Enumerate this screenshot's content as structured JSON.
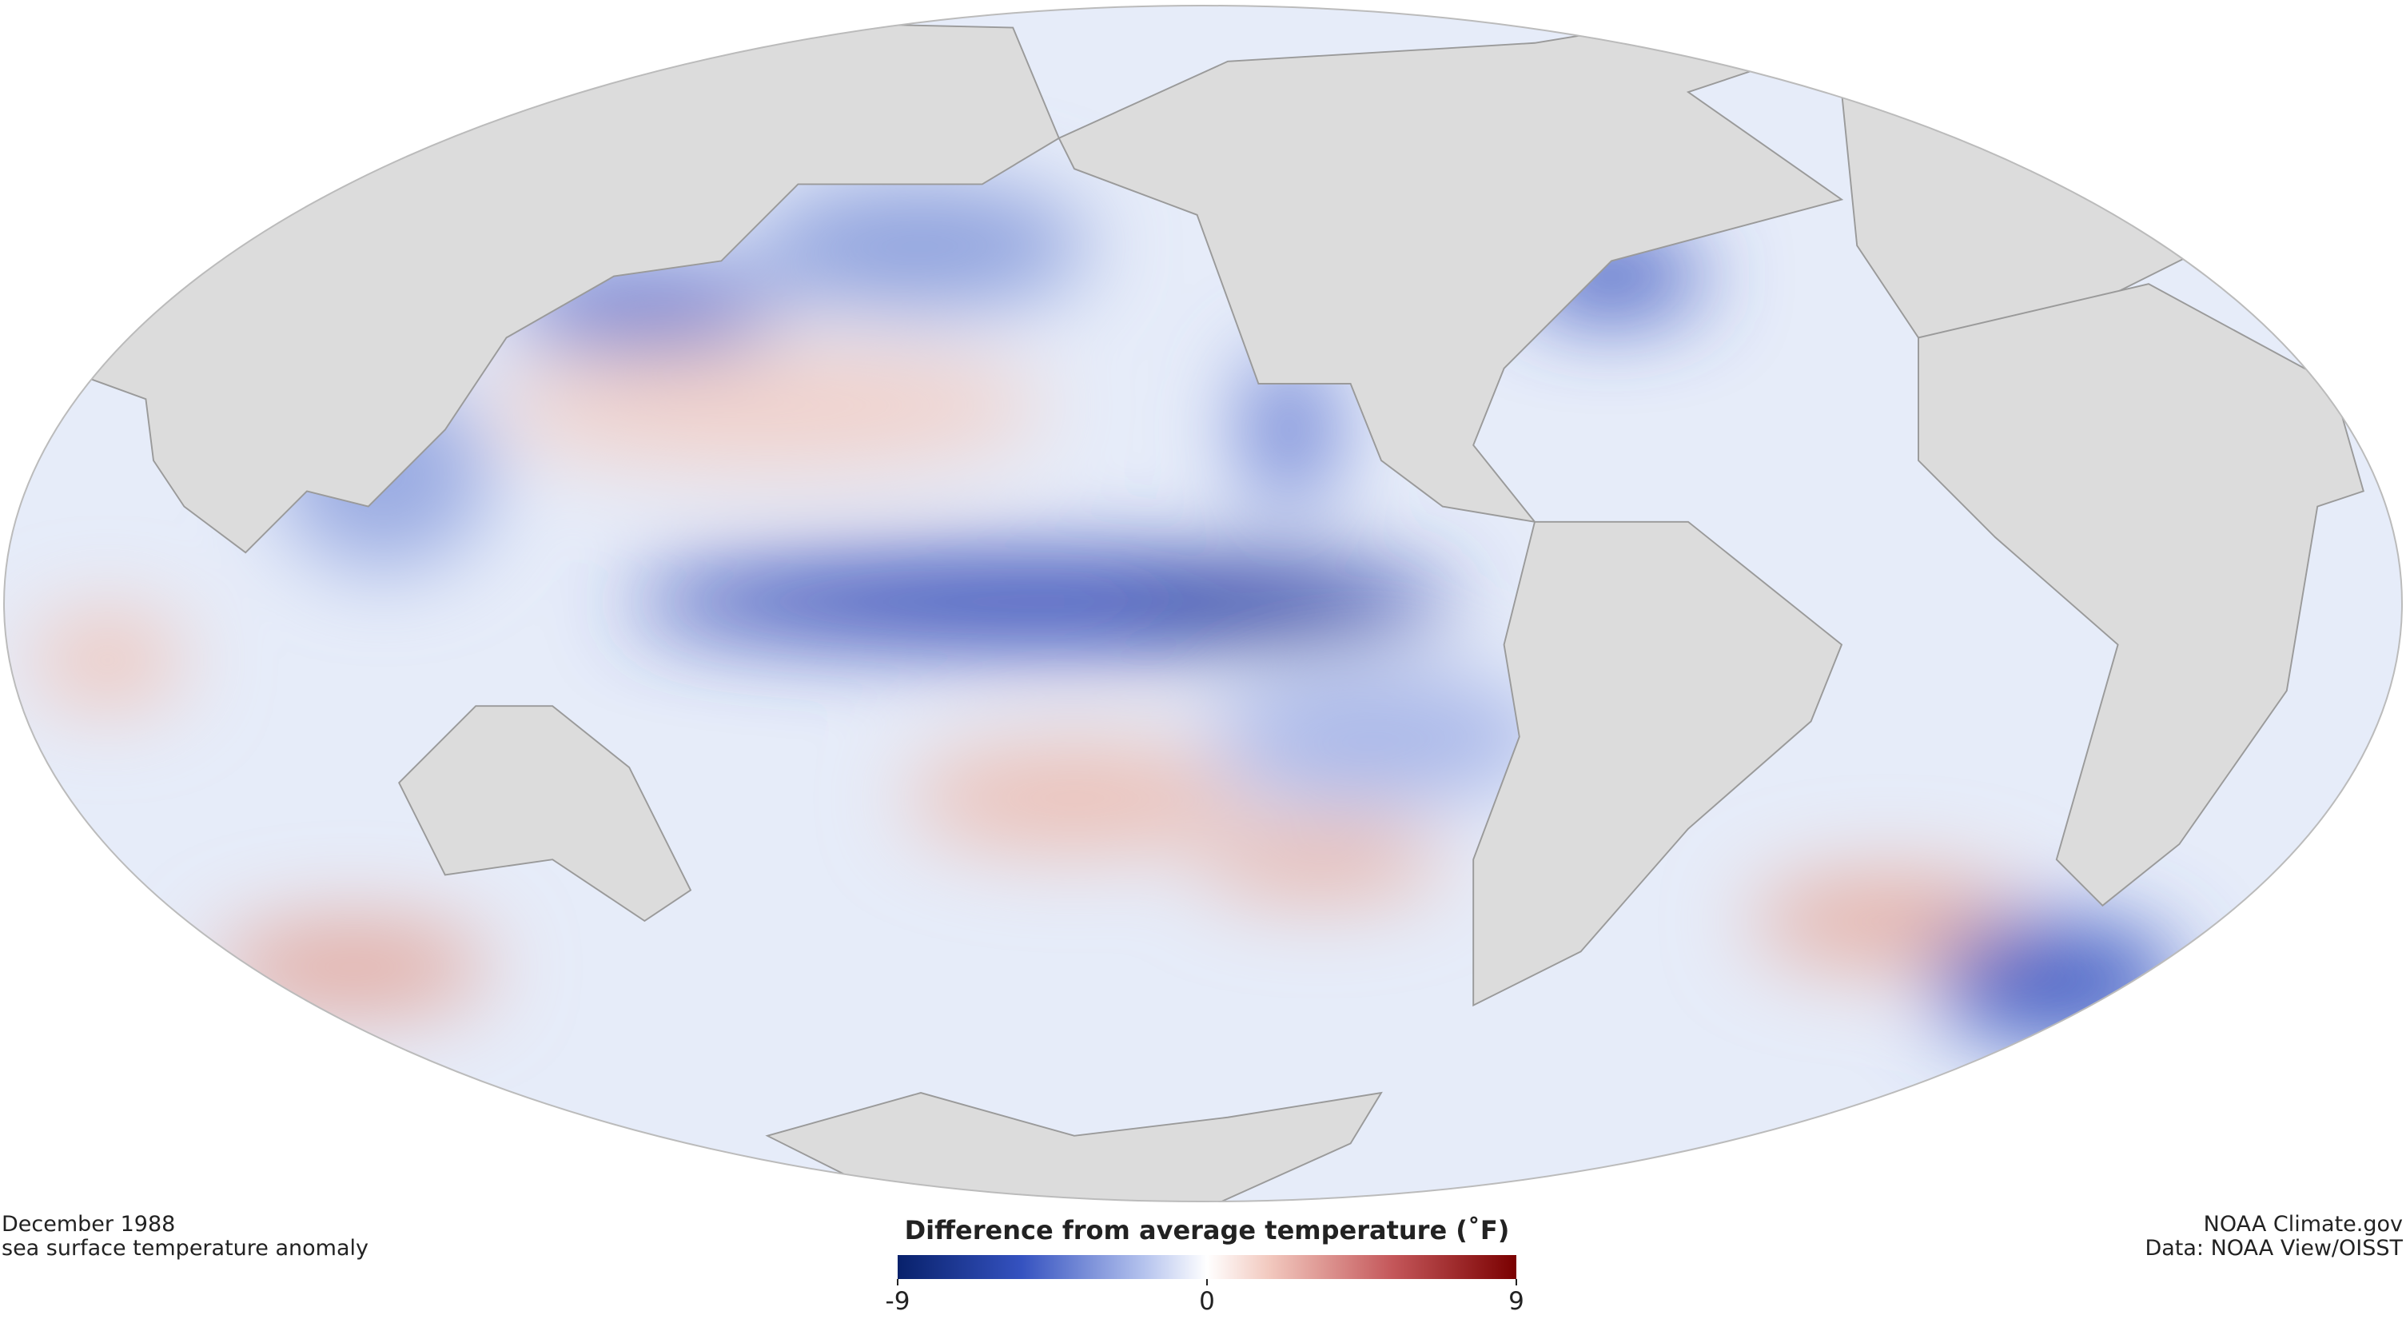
{
  "caption": {
    "date": "December 1988",
    "subtitle": "sea surface temperature anomaly"
  },
  "legend": {
    "title": "Difference from average temperature (˚F)",
    "range": [
      -9,
      9
    ],
    "ticks": [
      -9,
      0,
      9
    ]
  },
  "credits": {
    "source": "NOAA Climate.gov",
    "data": "Data: NOAA View/OISST"
  }
}
